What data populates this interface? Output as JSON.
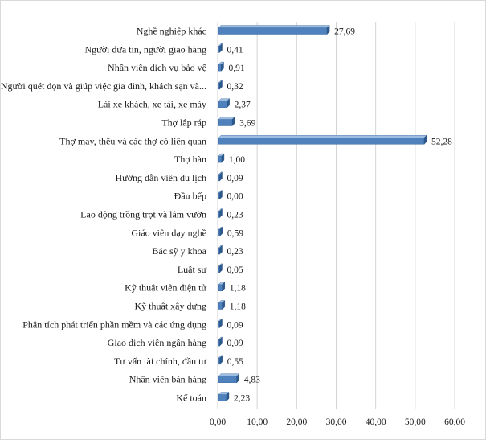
{
  "chart_data": {
    "type": "bar",
    "orientation": "horizontal",
    "categories": [
      "Nghề nghiệp khác",
      "Người đưa tin, người giao hàng",
      "Nhân viên dịch vụ bảo vệ",
      "Người quét dọn và giúp việc gia đình, khách sạn và...",
      "Lái xe khách, xe tải, xe máy",
      "Thợ lắp ráp",
      "Thợ may, thêu và các thợ có liên quan",
      "Thợ hàn",
      "Hướng dẫn viên du lịch",
      "Đầu bếp",
      "Lao động trồng trọt và lâm vườn",
      "Giáo viên dạy nghề",
      "Bác sỹ y khoa",
      "Luật sư",
      "Kỹ thuật viên điện tử",
      "Kỹ thuật xây dựng",
      "Phân tích phát triển phần mềm và các ứng dụng",
      "Giao dịch viên ngân hàng",
      "Tư vấn tài chính, đầu tư",
      "Nhân viên bán hàng",
      "Kế toán"
    ],
    "values": [
      27.69,
      0.41,
      0.91,
      0.32,
      2.37,
      3.69,
      52.28,
      1.0,
      0.09,
      0.0,
      0.23,
      0.59,
      0.23,
      0.05,
      1.18,
      1.18,
      0.09,
      0.09,
      0.55,
      4.83,
      2.23
    ],
    "value_labels": [
      "27,69",
      "0,41",
      "0,91",
      "0,32",
      "2,37",
      "3,69",
      "52,28",
      "1,00",
      "0,09",
      "0,00",
      "0,23",
      "0,59",
      "0,23",
      "0,05",
      "1,18",
      "1,18",
      "0,09",
      "0,09",
      "0,55",
      "4,83",
      "2,23"
    ],
    "xticks": [
      0,
      10,
      20,
      30,
      40,
      50,
      60
    ],
    "xtick_labels": [
      "0,00",
      "10,00",
      "20,00",
      "30,00",
      "40,00",
      "50,00",
      "60,00"
    ],
    "xlim": [
      0,
      60
    ],
    "title": "",
    "xlabel": "",
    "ylabel": "",
    "grid": "vertical",
    "legend": "none",
    "colors": {
      "bar_front": "#4f81bd",
      "bar_top": "#9dbde3",
      "bar_side": "#2c5a8c",
      "grid": "#d4d4d4"
    }
  }
}
